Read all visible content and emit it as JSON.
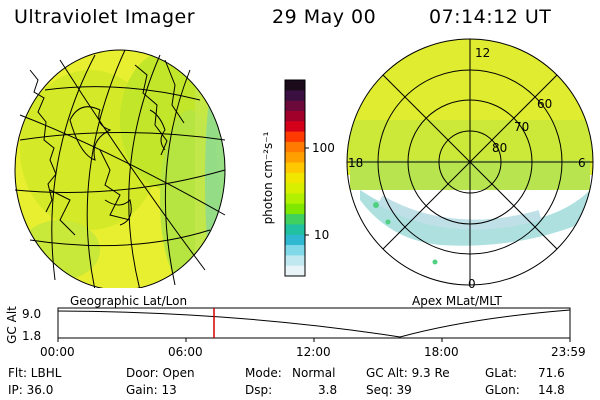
{
  "header": {
    "instrument": "Ultraviolet Imager",
    "date": "29 May 00",
    "time": "07:14:12 UT"
  },
  "left_panel": {
    "caption": "Geographic Lat/Lon"
  },
  "right_panel": {
    "caption": "Apex MLat/MLT",
    "lat_labels": [
      "60",
      "70",
      "80"
    ],
    "mlt_labels": {
      "top": "12",
      "left": "18",
      "right": "6",
      "bottom": "0"
    }
  },
  "colorbar": {
    "unit_label": "photon cm⁻²s⁻¹",
    "tick_labels": [
      "100",
      "10"
    ],
    "colors": [
      "#1a0a1a",
      "#3a1040",
      "#6b0a3a",
      "#a0002a",
      "#d4001a",
      "#ff3a00",
      "#ff7a00",
      "#ffa000",
      "#ffc800",
      "#f0e600",
      "#d8f000",
      "#b0f000",
      "#80e800",
      "#40d060",
      "#20c0a0",
      "#30b8d0",
      "#80d8e8",
      "#c0e8f0",
      "#e8f4f8"
    ]
  },
  "altitude_plot": {
    "ylabel": "GC Alt",
    "y_ticks": [
      "9.0",
      "1.8"
    ],
    "x_ticks": [
      "00:00",
      "06:00",
      "12:00",
      "18:00",
      "23:59"
    ],
    "marker_color": "#d00000"
  },
  "status": {
    "row1": {
      "flt": "Flt: LBHL",
      "door": "Door: Open",
      "mode": "Mode:",
      "mode_val": "Normal",
      "gcalt": "GC Alt: 9.3 Re",
      "glat": "GLat:",
      "glat_val": "71.6"
    },
    "row2": {
      "ip": "IP: 36.0",
      "gain": "Gain: 13",
      "dsp": "Dsp:",
      "dsp_val": "3.8",
      "seq": "Seq: 39",
      "glon": "GLon:",
      "glon_val": "14.8"
    }
  }
}
